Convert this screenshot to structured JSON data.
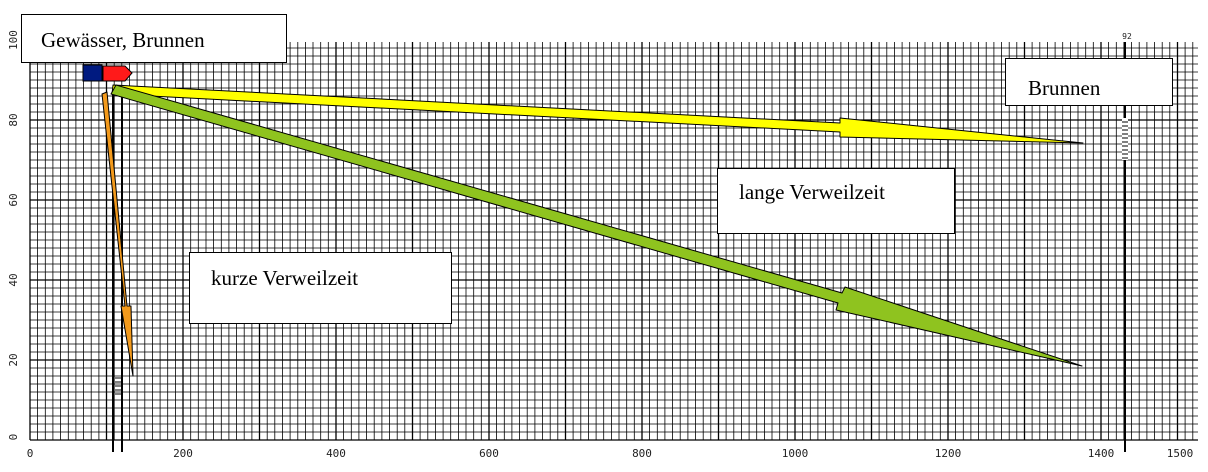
{
  "labels": {
    "source": "Gewässer, Brunnen",
    "well": "Brunnen",
    "long_residence": "lange Verweilzeit",
    "short_residence": "kurze Verweilzeit"
  },
  "axes": {
    "x_ticks": [
      "0",
      "200",
      "400",
      "600",
      "800",
      "1000",
      "1200",
      "1400",
      "1500"
    ],
    "y_ticks": [
      "0",
      "20",
      "40",
      "60",
      "80",
      "100"
    ],
    "marker_label": "92"
  },
  "colors": {
    "arrow_long": "#ffff00",
    "arrow_diagonal": "#8fc31f",
    "arrow_short": "#f39a1c",
    "source_red": "#ff1a1a",
    "source_blue": "#001a80",
    "grid": "#000000"
  }
}
